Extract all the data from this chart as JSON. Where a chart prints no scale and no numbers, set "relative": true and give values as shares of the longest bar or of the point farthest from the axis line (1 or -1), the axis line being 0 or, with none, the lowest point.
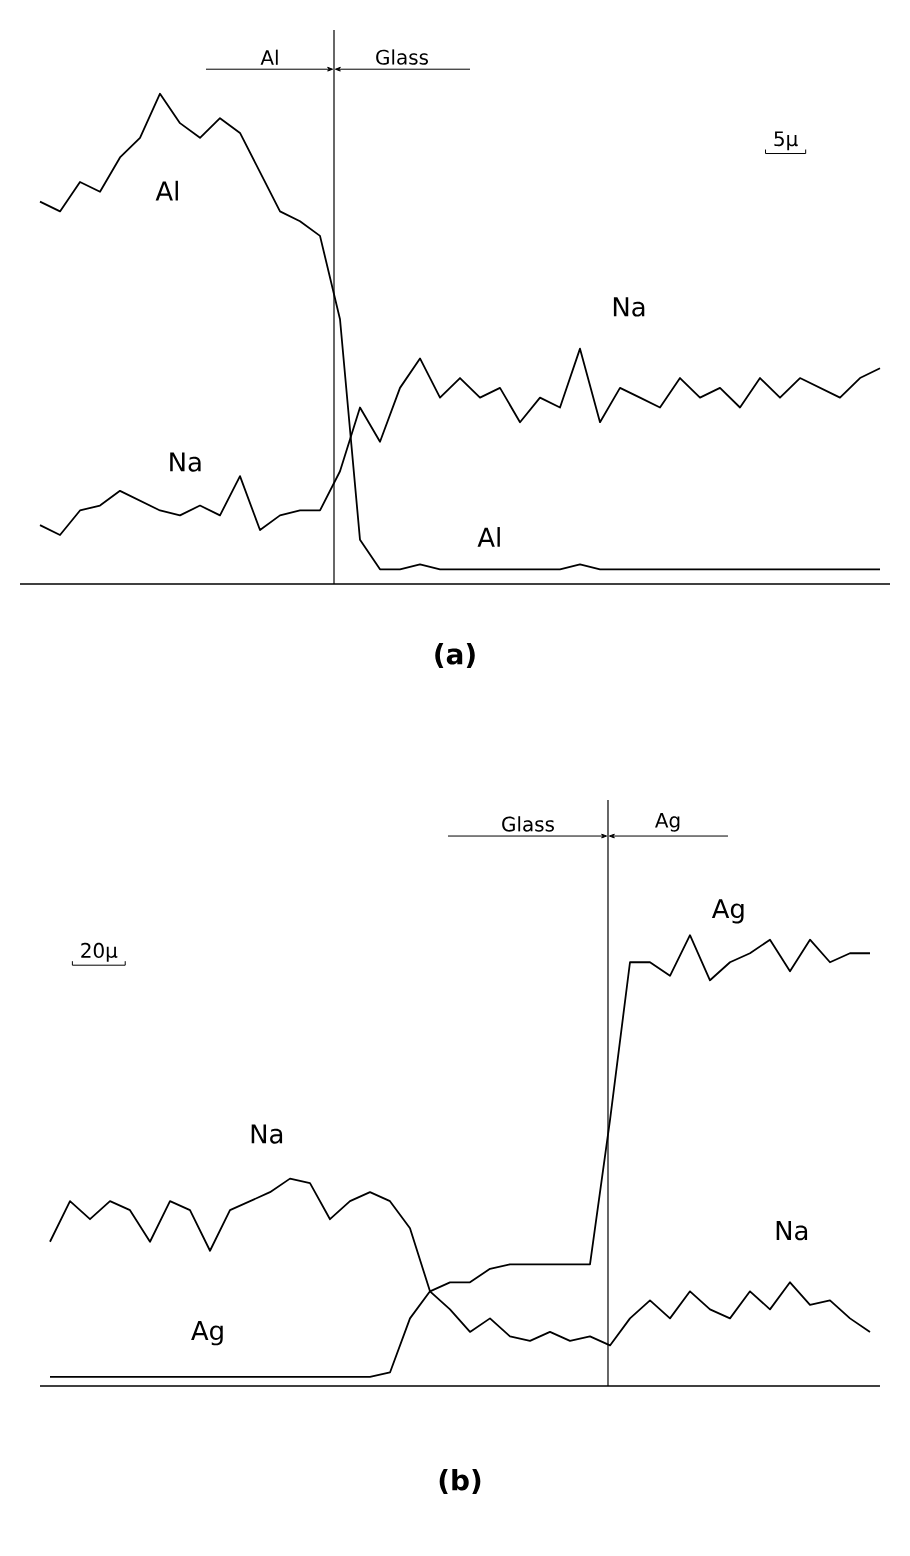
{
  "chart_data": [
    {
      "type": "line",
      "title": "(a)",
      "relative": true,
      "marker": "none",
      "line_style": "solid",
      "categories": [
        null,
        null,
        null,
        null,
        null,
        null,
        null,
        null,
        null,
        null,
        null,
        null,
        null,
        null,
        null,
        null,
        null,
        null,
        null,
        null,
        null,
        null,
        null,
        null,
        null,
        null,
        null,
        null,
        null,
        null,
        null,
        null,
        null,
        null,
        null,
        null,
        null,
        null,
        null,
        null,
        null,
        null,
        null
      ],
      "series": [
        {
          "color": "#000000",
          "values": [
            0.78,
            0.76,
            0.82,
            0.8,
            0.87,
            0.91,
            1.0,
            0.94,
            0.91,
            0.95,
            0.92,
            0.84,
            0.76,
            0.74,
            0.71,
            0.54,
            0.09,
            0.03,
            0.03,
            0.04,
            0.03,
            0.03,
            0.03,
            0.03,
            0.03,
            0.03,
            0.03,
            0.04,
            0.03,
            0.03,
            0.03,
            0.03,
            0.03,
            0.03,
            0.03,
            0.03,
            0.03,
            0.03,
            0.03,
            0.03,
            0.03,
            0.03,
            0.03
          ]
        },
        {
          "color": "#000000",
          "values": [
            0.12,
            0.1,
            0.15,
            0.16,
            0.19,
            0.17,
            0.15,
            0.14,
            0.16,
            0.14,
            0.22,
            0.11,
            0.14,
            0.15,
            0.15,
            0.23,
            0.36,
            0.29,
            0.4,
            0.46,
            0.38,
            0.42,
            0.38,
            0.4,
            0.33,
            0.38,
            0.36,
            0.48,
            0.33,
            0.4,
            0.38,
            0.36,
            0.42,
            0.38,
            0.4,
            0.36,
            0.42,
            0.38,
            0.42,
            0.4,
            0.38,
            0.42,
            0.44
          ]
        }
      ],
      "annotations": [
        "Al",
        "Na",
        "Na",
        "Al",
        "Al",
        "Glass",
        "5μ"
      ]
    },
    {
      "type": "line",
      "title": "(b)",
      "relative": true,
      "marker": "none",
      "line_style": "solid",
      "categories": [
        null,
        null,
        null,
        null,
        null,
        null,
        null,
        null,
        null,
        null,
        null,
        null,
        null,
        null,
        null,
        null,
        null,
        null,
        null,
        null,
        null,
        null,
        null,
        null,
        null,
        null,
        null,
        null,
        null,
        null,
        null,
        null,
        null,
        null,
        null,
        null,
        null,
        null,
        null,
        null,
        null,
        null
      ],
      "series": [
        {
          "color": "#000000",
          "values": [
            0.02,
            0.02,
            0.02,
            0.02,
            0.02,
            0.02,
            0.02,
            0.02,
            0.02,
            0.02,
            0.02,
            0.02,
            0.02,
            0.02,
            0.02,
            0.02,
            0.02,
            0.03,
            0.15,
            0.21,
            0.23,
            0.23,
            0.26,
            0.27,
            0.27,
            0.27,
            0.27,
            0.27,
            0.59,
            0.94,
            0.94,
            0.91,
            1.0,
            0.9,
            0.94,
            0.96,
            0.99,
            0.92,
            0.99,
            0.94,
            0.96,
            0.96
          ]
        },
        {
          "color": "#000000",
          "values": [
            0.32,
            0.41,
            0.37,
            0.41,
            0.39,
            0.32,
            0.41,
            0.39,
            0.3,
            0.39,
            0.41,
            0.43,
            0.46,
            0.45,
            0.37,
            0.41,
            0.43,
            0.41,
            0.35,
            0.21,
            0.17,
            0.12,
            0.15,
            0.11,
            0.1,
            0.12,
            0.1,
            0.11,
            0.09,
            0.15,
            0.19,
            0.15,
            0.21,
            0.17,
            0.15,
            0.21,
            0.17,
            0.23,
            0.18,
            0.19,
            0.15,
            0.12
          ]
        }
      ],
      "annotations": [
        "Na",
        "Ag",
        "Na",
        "Ag",
        "Glass",
        "Ag",
        "20μ"
      ]
    }
  ]
}
